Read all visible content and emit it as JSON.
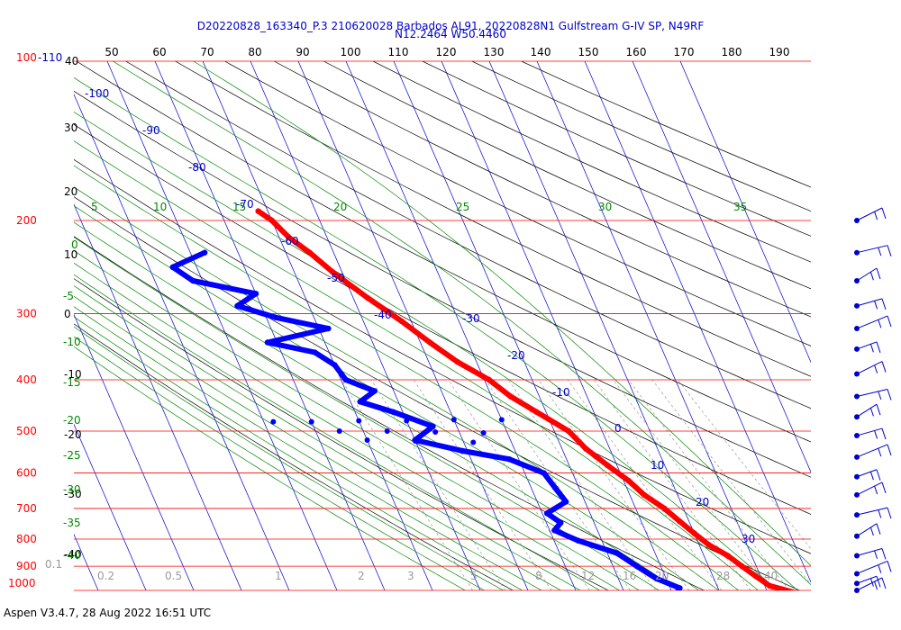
{
  "chart_data": {
    "type": "scatter",
    "diagram": "skew-T log-P",
    "title_line1": "D20220828_163340_P.3 210620028 Barbados AL91, 20220828N1 Gulfstream G-IV SP, N49RF",
    "title_line2": "N12.2464 W50.4460",
    "footer": "Aspen V3.4.7, 28 Aug 2022  16:51 UTC",
    "y_scale": "log",
    "pressure_range": [
      100,
      1000
    ],
    "top_axis_ticks": [
      "50",
      "60",
      "70",
      "80",
      "90",
      "100",
      "110",
      "120",
      "130",
      "140",
      "150",
      "160",
      "170",
      "180",
      "190"
    ],
    "top_left_labels": {
      "pressure": "100",
      "temperature": "-110",
      "height": "40"
    },
    "pressure_ticks": [
      "200",
      "300",
      "400",
      "500",
      "600",
      "700",
      "800",
      "900",
      "1000"
    ],
    "height_ticks": [
      "30",
      "20",
      "10",
      "0",
      "-10",
      "-20",
      "-30",
      "-40"
    ],
    "isotherm_labels": [
      "-100",
      "-90",
      "-80",
      "-70",
      "-60",
      "-50",
      "-40",
      "-30",
      "-20",
      "-10",
      "0",
      "10",
      "20",
      "30"
    ],
    "dry_adiabat_labels": [
      "5",
      "10",
      "15",
      "20",
      "25",
      "30",
      "35"
    ],
    "moist_adiabat_labels": [
      "0",
      "-5",
      "-10",
      "-15",
      "-20",
      "-25",
      "-30",
      "-35",
      "-40"
    ],
    "mixing_ratio_labels": [
      "0.1",
      "0.2",
      "0.5",
      "1",
      "2",
      "3",
      "5",
      "8",
      "12",
      "16",
      "20",
      "28",
      "40"
    ],
    "series": [
      {
        "name": "Temperature",
        "color": "#ff0000",
        "points": [
          {
            "p": 192,
            "t": -52
          },
          {
            "p": 200,
            "t": -50
          },
          {
            "p": 215,
            "t": -48
          },
          {
            "p": 230,
            "t": -45
          },
          {
            "p": 250,
            "t": -42
          },
          {
            "p": 280,
            "t": -37
          },
          {
            "p": 310,
            "t": -32
          },
          {
            "p": 340,
            "t": -28
          },
          {
            "p": 370,
            "t": -24
          },
          {
            "p": 400,
            "t": -19
          },
          {
            "p": 430,
            "t": -16
          },
          {
            "p": 460,
            "t": -12
          },
          {
            "p": 500,
            "t": -7
          },
          {
            "p": 540,
            "t": -5
          },
          {
            "p": 580,
            "t": -2
          },
          {
            "p": 620,
            "t": 1
          },
          {
            "p": 660,
            "t": 3
          },
          {
            "p": 700,
            "t": 6
          },
          {
            "p": 740,
            "t": 8
          },
          {
            "p": 780,
            "t": 10
          },
          {
            "p": 820,
            "t": 12
          },
          {
            "p": 860,
            "t": 15
          },
          {
            "p": 900,
            "t": 17
          },
          {
            "p": 940,
            "t": 19
          },
          {
            "p": 980,
            "t": 21
          },
          {
            "p": 1012,
            "t": 26
          }
        ]
      },
      {
        "name": "Dew point",
        "color": "#0000ff",
        "points": [
          {
            "p": 230,
            "t": -67
          },
          {
            "p": 245,
            "t": -75
          },
          {
            "p": 260,
            "t": -72
          },
          {
            "p": 275,
            "t": -60
          },
          {
            "p": 290,
            "t": -65
          },
          {
            "p": 305,
            "t": -58
          },
          {
            "p": 320,
            "t": -48
          },
          {
            "p": 340,
            "t": -62
          },
          {
            "p": 355,
            "t": -53
          },
          {
            "p": 375,
            "t": -50
          },
          {
            "p": 400,
            "t": -49
          },
          {
            "p": 420,
            "t": -44
          },
          {
            "p": 440,
            "t": -48
          },
          {
            "p": 460,
            "t": -42
          },
          {
            "p": 490,
            "t": -35
          },
          {
            "p": 520,
            "t": -40
          },
          {
            "p": 545,
            "t": -31
          },
          {
            "p": 565,
            "t": -22
          },
          {
            "p": 600,
            "t": -16
          },
          {
            "p": 640,
            "t": -15
          },
          {
            "p": 680,
            "t": -14
          },
          {
            "p": 715,
            "t": -19
          },
          {
            "p": 745,
            "t": -17
          },
          {
            "p": 770,
            "t": -19
          },
          {
            "p": 805,
            "t": -15
          },
          {
            "p": 850,
            "t": -8
          },
          {
            "p": 900,
            "t": -5
          },
          {
            "p": 950,
            "t": -2
          },
          {
            "p": 990,
            "t": 2
          },
          {
            "p": 1010,
            "t": 1
          }
        ]
      }
    ],
    "sparse_points": [
      {
        "p": 480,
        "t": -68
      },
      {
        "p": 480,
        "t": -60
      },
      {
        "p": 478,
        "t": -50
      },
      {
        "p": 478,
        "t": -40
      },
      {
        "p": 476,
        "t": -30
      },
      {
        "p": 476,
        "t": -20
      },
      {
        "p": 500,
        "t": -55
      },
      {
        "p": 500,
        "t": -45
      },
      {
        "p": 502,
        "t": -35
      },
      {
        "p": 504,
        "t": -25
      },
      {
        "p": 520,
        "t": -50
      },
      {
        "p": 522,
        "t": -40
      },
      {
        "p": 525,
        "t": -28
      }
    ],
    "wind_barbs_pressure": [
      200,
      230,
      260,
      290,
      320,
      350,
      390,
      430,
      470,
      510,
      560,
      610,
      660,
      720,
      790,
      860,
      930,
      970,
      1000
    ]
  }
}
